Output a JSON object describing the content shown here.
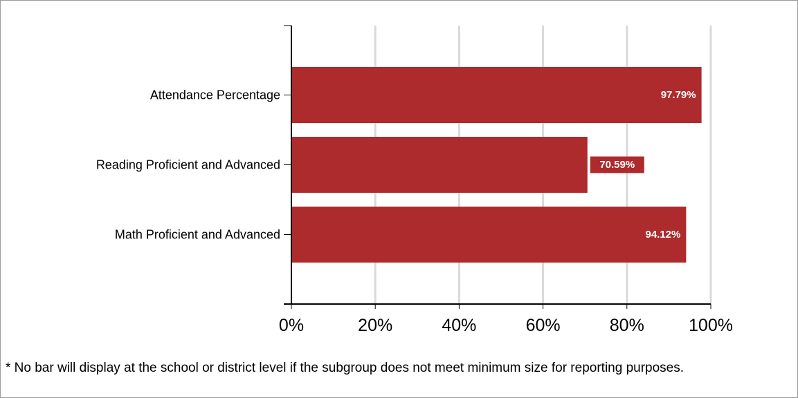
{
  "chart_data": {
    "type": "bar",
    "orientation": "horizontal",
    "categories": [
      "Attendance Percentage",
      "Reading Proficient and Advanced",
      "Math Proficient and Advanced"
    ],
    "values": [
      97.79,
      70.59,
      94.12
    ],
    "data_labels": [
      "97.79%",
      "70.59%",
      "94.12%"
    ],
    "xlim": [
      0,
      100
    ],
    "x_ticks": [
      0,
      20,
      40,
      60,
      80,
      100
    ],
    "x_tick_labels": [
      "0%",
      "20%",
      "40%",
      "60%",
      "80%",
      "100%"
    ],
    "grid": "vertical",
    "bar_color": "#ad2a2d",
    "label_color": "#ffffff"
  },
  "footnote": "* No bar will display at the school or district level if the subgroup does not meet minimum size for reporting purposes."
}
